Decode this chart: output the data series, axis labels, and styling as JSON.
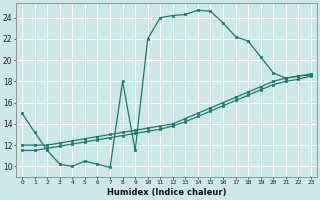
{
  "xlabel": "Humidex (Indice chaleur)",
  "bg_color": "#cce8e8",
  "grid_color": "#ffffff",
  "line_color": "#1a7a6e",
  "xlim": [
    -0.5,
    23.5
  ],
  "ylim": [
    9.0,
    25.4
  ],
  "xticks": [
    0,
    1,
    2,
    3,
    4,
    5,
    6,
    7,
    8,
    9,
    10,
    11,
    12,
    13,
    14,
    15,
    16,
    17,
    18,
    19,
    20,
    21,
    22,
    23
  ],
  "yticks": [
    10,
    12,
    14,
    16,
    18,
    20,
    22,
    24
  ],
  "line1_x": [
    0,
    1,
    2,
    3,
    4,
    5,
    6,
    7,
    8,
    9,
    10,
    11,
    12,
    13,
    14,
    15,
    16,
    17,
    18,
    19,
    20,
    21,
    22,
    23
  ],
  "line1_y": [
    15.0,
    13.2,
    11.5,
    10.2,
    10.0,
    10.5,
    10.2,
    9.9,
    18.0,
    11.5,
    22.0,
    24.0,
    24.2,
    24.3,
    24.7,
    24.6,
    23.5,
    22.2,
    21.8,
    20.3,
    18.8,
    18.3,
    18.5,
    18.6
  ],
  "line2_x": [
    0,
    1,
    2,
    3,
    4,
    5,
    6,
    7,
    8,
    9,
    10,
    11,
    12,
    13,
    14,
    15,
    16,
    17,
    18,
    19,
    20,
    21,
    22,
    23
  ],
  "line2_y": [
    12.0,
    12.0,
    12.0,
    12.2,
    12.4,
    12.6,
    12.8,
    13.0,
    13.2,
    13.4,
    13.6,
    13.8,
    14.0,
    14.5,
    15.0,
    15.5,
    16.0,
    16.5,
    17.0,
    17.5,
    18.0,
    18.3,
    18.5,
    18.7
  ],
  "line3_x": [
    0,
    1,
    2,
    3,
    4,
    5,
    6,
    7,
    8,
    9,
    10,
    11,
    12,
    13,
    14,
    15,
    16,
    17,
    18,
    19,
    20,
    21,
    22,
    23
  ],
  "line3_y": [
    11.5,
    11.5,
    11.7,
    11.9,
    12.1,
    12.3,
    12.5,
    12.7,
    12.9,
    13.1,
    13.3,
    13.5,
    13.8,
    14.2,
    14.7,
    15.2,
    15.7,
    16.2,
    16.7,
    17.2,
    17.7,
    18.0,
    18.2,
    18.5
  ]
}
